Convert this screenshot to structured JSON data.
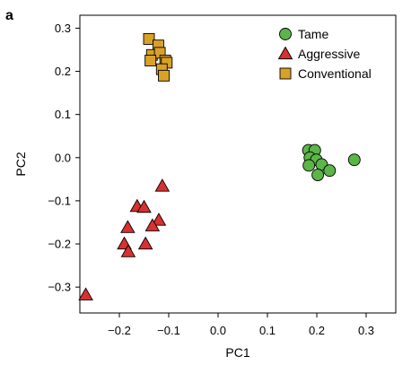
{
  "panel_label": "a",
  "chart_data": {
    "type": "scatter",
    "xlabel": "PC1",
    "ylabel": "PC2",
    "xlim": [
      -0.28,
      0.36
    ],
    "ylim": [
      -0.36,
      0.33
    ],
    "xticks": [
      -0.2,
      -0.1,
      0.0,
      0.1,
      0.2,
      0.3
    ],
    "xtick_labels": [
      "−0.2",
      "−0.1",
      "0.0",
      "0.1",
      "0.2",
      "0.3"
    ],
    "yticks": [
      -0.3,
      -0.2,
      -0.1,
      0.0,
      0.1,
      0.2,
      0.3
    ],
    "ytick_labels": [
      "−0.3",
      "−0.2",
      "−0.1",
      "0.0",
      "0.1",
      "0.2",
      "0.3"
    ],
    "grid": false,
    "legend_position": "top-right",
    "series": [
      {
        "name": "Tame",
        "marker": "circle",
        "color": "#5cb548",
        "points": [
          {
            "x": 0.183,
            "y": 0.017
          },
          {
            "x": 0.196,
            "y": 0.017
          },
          {
            "x": 0.186,
            "y": 0.0
          },
          {
            "x": 0.199,
            "y": -0.005
          },
          {
            "x": 0.184,
            "y": -0.018
          },
          {
            "x": 0.21,
            "y": -0.016
          },
          {
            "x": 0.202,
            "y": -0.04
          },
          {
            "x": 0.226,
            "y": -0.03
          },
          {
            "x": 0.276,
            "y": -0.005
          }
        ]
      },
      {
        "name": "Aggressive",
        "marker": "triangle",
        "color": "#d93030",
        "points": [
          {
            "x": -0.113,
            "y": -0.066
          },
          {
            "x": -0.164,
            "y": -0.113
          },
          {
            "x": -0.15,
            "y": -0.115
          },
          {
            "x": -0.12,
            "y": -0.145
          },
          {
            "x": -0.133,
            "y": -0.158
          },
          {
            "x": -0.183,
            "y": -0.162
          },
          {
            "x": -0.147,
            "y": -0.2
          },
          {
            "x": -0.19,
            "y": -0.2
          },
          {
            "x": -0.182,
            "y": -0.218
          },
          {
            "x": -0.268,
            "y": -0.318
          }
        ]
      },
      {
        "name": "Conventional",
        "marker": "square",
        "color": "#d9a128",
        "points": [
          {
            "x": -0.14,
            "y": 0.275
          },
          {
            "x": -0.121,
            "y": 0.26
          },
          {
            "x": -0.134,
            "y": 0.238
          },
          {
            "x": -0.118,
            "y": 0.243
          },
          {
            "x": -0.107,
            "y": 0.225
          },
          {
            "x": -0.137,
            "y": 0.225
          },
          {
            "x": -0.104,
            "y": 0.22
          },
          {
            "x": -0.114,
            "y": 0.205
          },
          {
            "x": -0.11,
            "y": 0.19
          }
        ]
      }
    ]
  }
}
